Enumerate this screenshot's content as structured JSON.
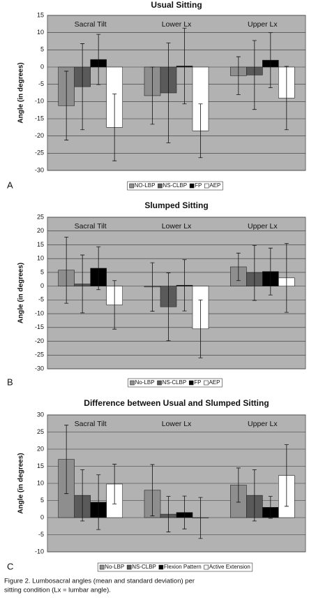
{
  "chart_data": [
    {
      "type": "bar",
      "title": "Usual Sitting",
      "panel": "A",
      "y_label": "Angle (in degrees)",
      "categories": [
        "Sacral Tilt",
        "Lower Lx",
        "Upper Lx"
      ],
      "ylim": [
        -30,
        15
      ],
      "yticks": [
        -30,
        -25,
        -20,
        -15,
        -10,
        -5,
        0,
        5,
        10,
        15
      ],
      "grid": true,
      "series": [
        {
          "name": "NO-LBP",
          "color": "#8e8e8e",
          "values": [
            -11.2,
            -8.3,
            -2.5
          ],
          "errors": [
            10,
            8.3,
            5.5
          ]
        },
        {
          "name": "NS-CLBP",
          "color": "#5a5a5a",
          "values": [
            -5.7,
            -7.5,
            -2.3
          ],
          "errors": [
            12.5,
            14.5,
            10
          ]
        },
        {
          "name": "FP",
          "color": "#000000",
          "values": [
            2.2,
            0.3,
            2
          ],
          "errors": [
            7.3,
            11,
            8
          ]
        },
        {
          "name": "AEP",
          "color": "#ffffff",
          "values": [
            -17.5,
            -18.5,
            -9
          ],
          "errors": [
            9.7,
            7.8,
            9.2
          ]
        }
      ]
    },
    {
      "type": "bar",
      "title": "Slumped Sitting",
      "panel": "B",
      "y_label": "Angle (in degrees)",
      "categories": [
        "Sacral Tilt",
        "Lower Lx",
        "Upper Lx"
      ],
      "ylim": [
        -30,
        25
      ],
      "yticks": [
        -30,
        -25,
        -20,
        -15,
        -10,
        -5,
        0,
        5,
        10,
        15,
        20,
        25
      ],
      "grid": true,
      "series": [
        {
          "name": "No-LBP",
          "color": "#8e8e8e",
          "values": [
            5.8,
            -0.3,
            7
          ],
          "errors": [
            12,
            8.8,
            5
          ]
        },
        {
          "name": "NS-CLBP",
          "color": "#5a5a5a",
          "values": [
            0.8,
            -7.5,
            4.8
          ],
          "errors": [
            10.5,
            12.3,
            10
          ]
        },
        {
          "name": "FP",
          "color": "#000000",
          "values": [
            6.5,
            0.3,
            5.3
          ],
          "errors": [
            7.8,
            9.3,
            8.5
          ]
        },
        {
          "name": "AEP",
          "color": "#ffffff",
          "values": [
            -6.8,
            -15.5,
            3
          ],
          "errors": [
            8.8,
            10.5,
            12.5
          ]
        }
      ]
    },
    {
      "type": "bar",
      "title": "Difference between Usual and Slumped Sitting",
      "panel": "C",
      "y_label": "Angle (in degrees)",
      "categories": [
        "Sacral Tilt",
        "Lower Lx",
        "Upper Lx"
      ],
      "ylim": [
        -10,
        30
      ],
      "yticks": [
        -10,
        -5,
        0,
        5,
        10,
        15,
        20,
        25,
        30
      ],
      "grid": true,
      "series": [
        {
          "name": "No-LBP",
          "color": "#8e8e8e",
          "values": [
            17,
            8,
            9.5
          ],
          "errors": [
            10,
            7.5,
            5
          ]
        },
        {
          "name": "NS-CLBP",
          "color": "#5a5a5a",
          "values": [
            6.5,
            1,
            6.5
          ],
          "errors": [
            7.5,
            5.2,
            7.5
          ]
        },
        {
          "name": "Flexion Pattern",
          "color": "#000000",
          "values": [
            4.5,
            1.5,
            3
          ],
          "errors": [
            8,
            4.8,
            3.2
          ]
        },
        {
          "name": "Active Extension",
          "color": "#ffffff",
          "values": [
            9.8,
            -0.1,
            12.3
          ],
          "errors": [
            5.8,
            6,
            9
          ]
        }
      ]
    }
  ],
  "caption": [
    "Figure 2. Lumbosacral angles (mean and standard deviation) per",
    "sitting condition (Lx = lumbar angle)."
  ]
}
